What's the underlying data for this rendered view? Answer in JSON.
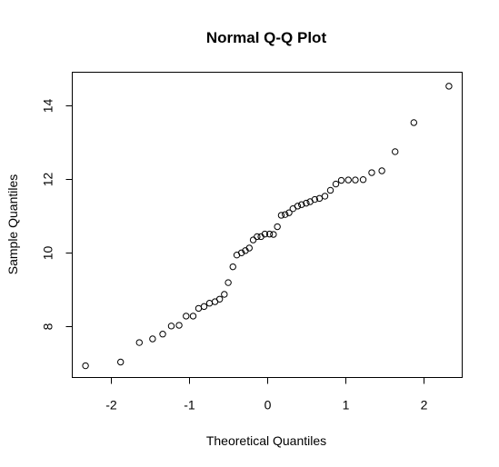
{
  "chart_data": {
    "type": "scatter",
    "title": "Normal Q-Q Plot",
    "xlabel": "Theoretical Quantiles",
    "ylabel": "Sample Quantiles",
    "xlim": [
      -2.5,
      2.5
    ],
    "ylim": [
      6.6,
      14.9
    ],
    "xticks": [
      -2,
      -1,
      0,
      1,
      2
    ],
    "yticks": [
      8,
      10,
      12,
      14
    ],
    "grid": false,
    "points": [
      {
        "x": -2.33,
        "y": 6.92
      },
      {
        "x": -1.88,
        "y": 7.02
      },
      {
        "x": -1.64,
        "y": 7.55
      },
      {
        "x": -1.47,
        "y": 7.65
      },
      {
        "x": -1.34,
        "y": 7.78
      },
      {
        "x": -1.23,
        "y": 8.0
      },
      {
        "x": -1.13,
        "y": 8.02
      },
      {
        "x": -1.04,
        "y": 8.27
      },
      {
        "x": -0.95,
        "y": 8.27
      },
      {
        "x": -0.88,
        "y": 8.48
      },
      {
        "x": -0.81,
        "y": 8.53
      },
      {
        "x": -0.74,
        "y": 8.62
      },
      {
        "x": -0.67,
        "y": 8.66
      },
      {
        "x": -0.61,
        "y": 8.73
      },
      {
        "x": -0.55,
        "y": 8.86
      },
      {
        "x": -0.5,
        "y": 9.18
      },
      {
        "x": -0.44,
        "y": 9.61
      },
      {
        "x": -0.39,
        "y": 9.93
      },
      {
        "x": -0.33,
        "y": 9.99
      },
      {
        "x": -0.28,
        "y": 10.05
      },
      {
        "x": -0.23,
        "y": 10.12
      },
      {
        "x": -0.18,
        "y": 10.34
      },
      {
        "x": -0.13,
        "y": 10.43
      },
      {
        "x": -0.08,
        "y": 10.43
      },
      {
        "x": -0.03,
        "y": 10.5
      },
      {
        "x": 0.03,
        "y": 10.5
      },
      {
        "x": 0.08,
        "y": 10.49
      },
      {
        "x": 0.13,
        "y": 10.7
      },
      {
        "x": 0.18,
        "y": 11.01
      },
      {
        "x": 0.23,
        "y": 11.03
      },
      {
        "x": 0.28,
        "y": 11.08
      },
      {
        "x": 0.33,
        "y": 11.19
      },
      {
        "x": 0.39,
        "y": 11.26
      },
      {
        "x": 0.44,
        "y": 11.3
      },
      {
        "x": 0.5,
        "y": 11.34
      },
      {
        "x": 0.55,
        "y": 11.38
      },
      {
        "x": 0.61,
        "y": 11.44
      },
      {
        "x": 0.67,
        "y": 11.47
      },
      {
        "x": 0.74,
        "y": 11.53
      },
      {
        "x": 0.81,
        "y": 11.69
      },
      {
        "x": 0.88,
        "y": 11.86
      },
      {
        "x": 0.95,
        "y": 11.96
      },
      {
        "x": 1.04,
        "y": 11.97
      },
      {
        "x": 1.13,
        "y": 11.97
      },
      {
        "x": 1.23,
        "y": 11.98
      },
      {
        "x": 1.34,
        "y": 12.17
      },
      {
        "x": 1.47,
        "y": 12.22
      },
      {
        "x": 1.64,
        "y": 12.74
      },
      {
        "x": 1.88,
        "y": 13.53
      },
      {
        "x": 2.33,
        "y": 14.52
      }
    ]
  }
}
